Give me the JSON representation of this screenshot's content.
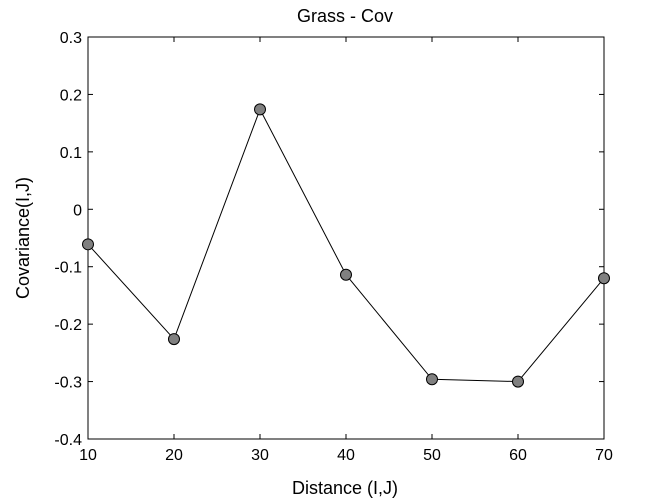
{
  "chart_data": {
    "type": "line",
    "title": "Grass - Cov",
    "xlabel": "Distance (I,J)",
    "ylabel": "Covariance(I,J)",
    "xlim": [
      10,
      70
    ],
    "ylim": [
      -0.4,
      0.3
    ],
    "xticks": [
      10,
      20,
      30,
      40,
      50,
      60,
      70
    ],
    "yticks": [
      0.3,
      0.2,
      0.1,
      0,
      -0.1,
      -0.2,
      -0.3,
      -0.4
    ],
    "xtick_labels": [
      "10",
      "20",
      "30",
      "40",
      "50",
      "60",
      "70"
    ],
    "ytick_labels": [
      "0.3",
      "0.2",
      "0.1",
      "0",
      "-0.1",
      "-0.2",
      "-0.3",
      "-0.4"
    ],
    "grid": false,
    "series": [
      {
        "x": [
          10,
          20,
          30,
          40,
          50,
          60,
          70
        ],
        "values": [
          -0.061,
          -0.226,
          0.174,
          -0.114,
          -0.296,
          -0.3,
          -0.12
        ],
        "line_color": "#000000",
        "marker_color": "#808080"
      }
    ]
  }
}
